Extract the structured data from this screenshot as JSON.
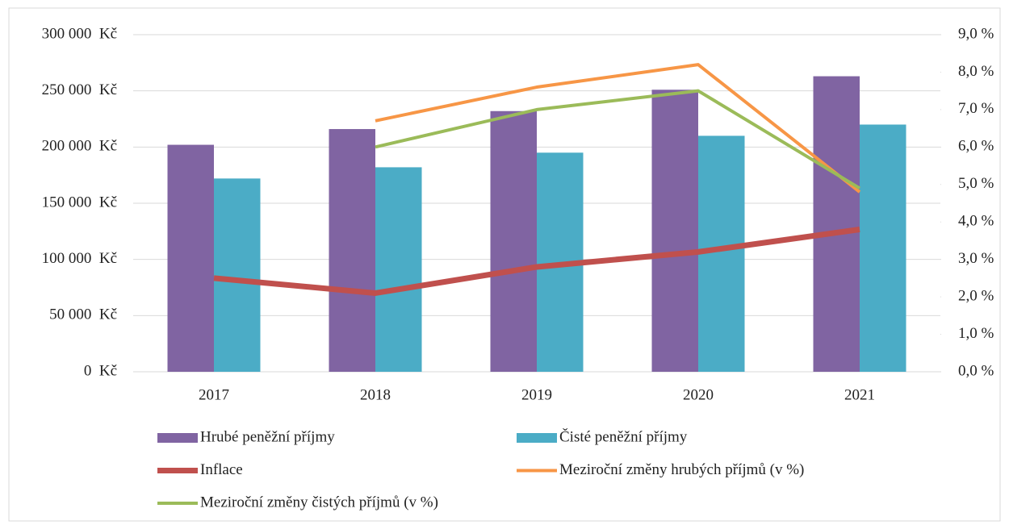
{
  "chart_data": {
    "type": "bar",
    "categories": [
      "2017",
      "2018",
      "2019",
      "2020",
      "2021"
    ],
    "series": [
      {
        "name": "Hrubé peněžní příjmy",
        "type": "bar",
        "color": "#8064a2",
        "values": [
          202000,
          216000,
          232000,
          251000,
          263000
        ]
      },
      {
        "name": "Čisté peněžní příjmy",
        "type": "bar",
        "color": "#4bacc6",
        "values": [
          172000,
          182000,
          195000,
          210000,
          220000
        ]
      },
      {
        "name": "Inflace",
        "type": "line",
        "axis": "y2",
        "color": "#c0504d",
        "width": 7,
        "values": [
          2.5,
          2.1,
          2.8,
          3.2,
          3.8
        ]
      },
      {
        "name": "Meziroční změny hrubých příjmů (v %)",
        "type": "line",
        "axis": "y2",
        "color": "#f79646",
        "width": 4,
        "values": [
          null,
          6.7,
          7.6,
          8.2,
          4.8
        ]
      },
      {
        "name": "Meziroční změny čistých příjmů (v %)",
        "type": "line",
        "axis": "y2",
        "color": "#9bbb59",
        "width": 4,
        "values": [
          null,
          6.0,
          7.0,
          7.5,
          4.9
        ]
      }
    ],
    "ylim": [
      0,
      300000
    ],
    "yticks": [
      {
        "value": 0,
        "label": "0  Kč"
      },
      {
        "value": 50000,
        "label": "50 000  Kč"
      },
      {
        "value": 100000,
        "label": "100 000  Kč"
      },
      {
        "value": 150000,
        "label": "150 000  Kč"
      },
      {
        "value": 200000,
        "label": "200 000  Kč"
      },
      {
        "value": 250000,
        "label": "250 000  Kč"
      },
      {
        "value": 300000,
        "label": "300 000  Kč"
      }
    ],
    "y2lim": [
      0,
      9
    ],
    "y2ticks": [
      {
        "value": 0,
        "label": "0,0 %"
      },
      {
        "value": 1,
        "label": "1,0 %"
      },
      {
        "value": 2,
        "label": "2,0 %"
      },
      {
        "value": 3,
        "label": "3,0 %"
      },
      {
        "value": 4,
        "label": "4,0 %"
      },
      {
        "value": 5,
        "label": "5,0 %"
      },
      {
        "value": 6,
        "label": "6,0 %"
      },
      {
        "value": 7,
        "label": "7,0 %"
      },
      {
        "value": 8,
        "label": "8,0 %"
      },
      {
        "value": 9,
        "label": "9,0 %"
      }
    ],
    "grid": true
  }
}
